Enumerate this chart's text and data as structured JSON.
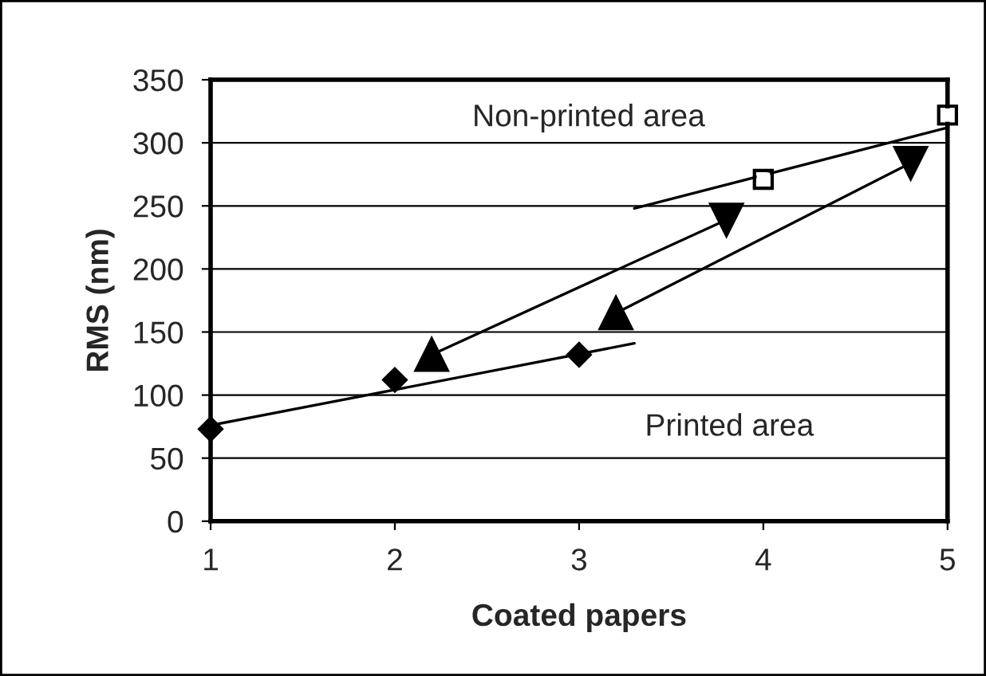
{
  "chart_data": {
    "type": "scatter",
    "xlabel": "Coated papers",
    "ylabel": "RMS (nm)",
    "xlim": [
      1,
      5
    ],
    "xticks": [
      1,
      2,
      3,
      4,
      5
    ],
    "ylim": [
      0,
      350
    ],
    "yticks": [
      0,
      50,
      100,
      150,
      200,
      250,
      300,
      350
    ],
    "grid": "y",
    "annotations": [
      "Non-printed area",
      "Printed area"
    ],
    "series": [
      {
        "type": "line",
        "x": [
          1,
          3.3
        ],
        "values": [
          76,
          141
        ],
        "color": "#000000",
        "marker": "none",
        "line_style": "solid"
      },
      {
        "type": "line",
        "x": [
          3.3,
          5
        ],
        "values": [
          248,
          312
        ],
        "color": "#000000",
        "marker": "none",
        "line_style": "solid"
      },
      {
        "type": "line",
        "x": [
          2.2,
          3.8
        ],
        "values": [
          132,
          239
        ],
        "color": "#000000",
        "marker": "none",
        "line_style": "solid"
      },
      {
        "type": "line",
        "x": [
          3.2,
          4.8
        ],
        "values": [
          165,
          284
        ],
        "color": "#000000",
        "marker": "none",
        "line_style": "solid"
      },
      {
        "x": [
          1,
          2,
          3
        ],
        "values": [
          73,
          112,
          132
        ],
        "color": "#000000",
        "marker": "diamond"
      },
      {
        "x": [
          4,
          5
        ],
        "values": [
          271,
          322
        ],
        "color": "#000000",
        "marker": "square_open"
      },
      {
        "x": [
          2.2,
          3.2
        ],
        "values": [
          132,
          165
        ],
        "color": "#000000",
        "marker": "triangle"
      },
      {
        "x": [
          3.8,
          4.8
        ],
        "values": [
          239,
          284
        ],
        "color": "#000000",
        "marker": "triangle_down"
      }
    ]
  }
}
